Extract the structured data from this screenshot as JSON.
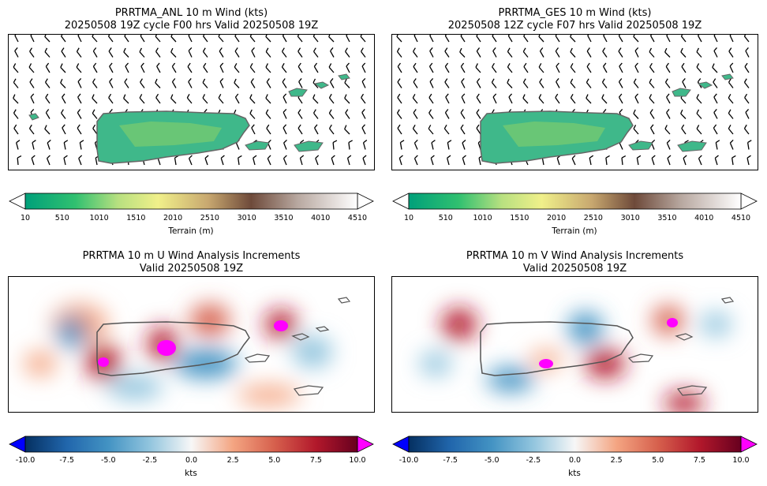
{
  "panels": [
    {
      "title_line1": "PRRTMA_ANL 10 m Wind (kts)",
      "title_line2": "20250508 19Z cycle F00 hrs Valid 20250508 19Z"
    },
    {
      "title_line1": "PRRTMA_GES 10 m Wind (kts)",
      "title_line2": "20250508 12Z cycle F07 hrs Valid 20250508 19Z"
    },
    {
      "title_line1": "PRRTMA 10 m U Wind Analysis Increments",
      "title_line2": "Valid 20250508 19Z"
    },
    {
      "title_line1": "PRRTMA 10 m V Wind Analysis Increments",
      "title_line2": "Valid 20250508 19Z"
    }
  ],
  "terrain_colorbar": {
    "label": "Terrain (m)",
    "ticks": [
      "10",
      "510",
      "1010",
      "1510",
      "2010",
      "2510",
      "3010",
      "3510",
      "4010",
      "4510"
    ],
    "colors": [
      "#00a07a",
      "#30c070",
      "#8fd87a",
      "#e8f08a",
      "#c8b070",
      "#8a6050",
      "#b8a8a0",
      "#f4f0f0"
    ]
  },
  "increment_colorbar": {
    "label": "kts",
    "ticks": [
      "-10.0",
      "-7.5",
      "-5.0",
      "-2.5",
      "0.0",
      "2.5",
      "5.0",
      "7.5",
      "10.0"
    ],
    "colors": [
      "#053061",
      "#2166ac",
      "#4393c3",
      "#92c5de",
      "#f7f7f7",
      "#f4a582",
      "#d6604d",
      "#b2182b",
      "#67001f"
    ],
    "under_color": "#0000ff",
    "over_color": "#ff00ff"
  },
  "chart_data": [
    {
      "type": "heatmap",
      "title": "PRRTMA_ANL 10 m Wind (kts) 20250508 19Z cycle F00 hrs Valid 20250508 19Z",
      "colorbar_label": "Terrain (m)",
      "colorbar_range": [
        10,
        4510
      ]
    },
    {
      "type": "heatmap",
      "title": "PRRTMA_GES 10 m Wind (kts) 20250508 12Z cycle F07 hrs Valid 20250508 19Z",
      "colorbar_label": "Terrain (m)",
      "colorbar_range": [
        10,
        4510
      ]
    },
    {
      "type": "heatmap",
      "title": "PRRTMA 10 m U Wind Analysis Increments Valid 20250508 19Z",
      "colorbar_label": "kts",
      "colorbar_range": [
        -10.0,
        10.0
      ]
    },
    {
      "type": "heatmap",
      "title": "PRRTMA 10 m V Wind Analysis Increments Valid 20250508 19Z",
      "colorbar_label": "kts",
      "colorbar_range": [
        -10.0,
        10.0
      ]
    }
  ]
}
